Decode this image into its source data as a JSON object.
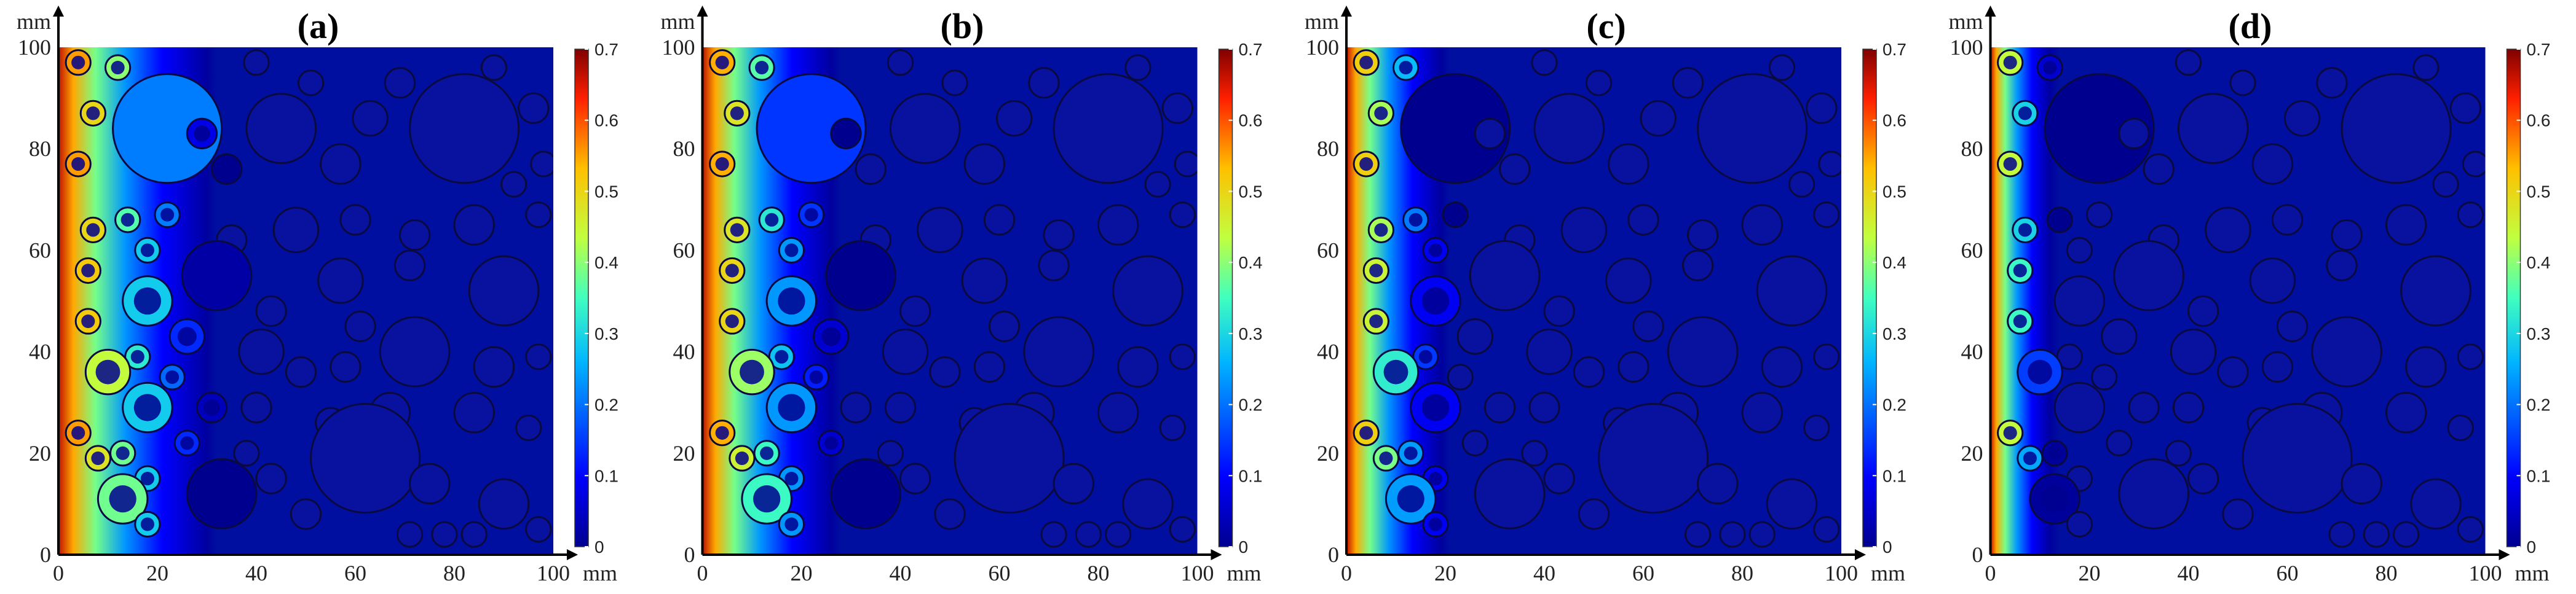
{
  "figure": {
    "unit": "mm",
    "colors": {
      "low": "#00008f",
      "mid": "#00c8ff",
      "high": "#ff0000",
      "background": "#000f9f"
    }
  },
  "chart_data": [
    {
      "type": "heatmap",
      "title": "(a)",
      "xlabel": "mm",
      "ylabel": "mm",
      "xlim": [
        0,
        100
      ],
      "ylim": [
        0,
        100
      ],
      "x_ticks": [
        "0",
        "20",
        "40",
        "60",
        "80",
        "100"
      ],
      "y_ticks": [
        "0",
        "20",
        "40",
        "60",
        "80",
        "100"
      ],
      "colorbar": {
        "range": [
          0,
          0.7
        ],
        "ticks": [
          "0",
          "0.1",
          "0.2",
          "0.3",
          "0.4",
          "0.5",
          "0.6",
          "0.7"
        ]
      },
      "penetration_depth_mm": 30,
      "grid": false
    },
    {
      "type": "heatmap",
      "title": "(b)",
      "xlabel": "mm",
      "ylabel": "mm",
      "xlim": [
        0,
        100
      ],
      "ylim": [
        0,
        100
      ],
      "x_ticks": [
        "0",
        "20",
        "40",
        "60",
        "80",
        "100"
      ],
      "y_ticks": [
        "0",
        "20",
        "40",
        "60",
        "80",
        "100"
      ],
      "colorbar": {
        "range": [
          0,
          0.7
        ],
        "ticks": [
          "0",
          "0.1",
          "0.2",
          "0.3",
          "0.4",
          "0.5",
          "0.6",
          "0.7"
        ]
      },
      "penetration_depth_mm": 26,
      "grid": false
    },
    {
      "type": "heatmap",
      "title": "(c)",
      "xlabel": "mm",
      "ylabel": "mm",
      "xlim": [
        0,
        100
      ],
      "ylim": [
        0,
        100
      ],
      "x_ticks": [
        "0",
        "20",
        "40",
        "60",
        "80",
        "100"
      ],
      "y_ticks": [
        "0",
        "20",
        "40",
        "60",
        "80",
        "100"
      ],
      "colorbar": {
        "range": [
          0,
          0.7
        ],
        "ticks": [
          "0",
          "0.1",
          "0.2",
          "0.3",
          "0.4",
          "0.5",
          "0.6",
          "0.7"
        ]
      },
      "penetration_depth_mm": 19,
      "grid": false
    },
    {
      "type": "heatmap",
      "title": "(d)",
      "xlabel": "mm",
      "ylabel": "mm",
      "xlim": [
        0,
        100
      ],
      "ylim": [
        0,
        100
      ],
      "x_ticks": [
        "0",
        "20",
        "40",
        "60",
        "80",
        "100"
      ],
      "y_ticks": [
        "0",
        "20",
        "40",
        "60",
        "80",
        "100"
      ],
      "colorbar": {
        "range": [
          0,
          0.7
        ],
        "ticks": [
          "0",
          "0.1",
          "0.2",
          "0.3",
          "0.4",
          "0.5",
          "0.6",
          "0.7"
        ]
      },
      "penetration_depth_mm": 12,
      "grid": false
    }
  ],
  "aggregates": [
    {
      "x": 4,
      "y": 97,
      "r": 2.5
    },
    {
      "x": 12,
      "y": 96,
      "r": 2.5
    },
    {
      "x": 22,
      "y": 84,
      "r": 11
    },
    {
      "x": 7,
      "y": 87,
      "r": 2.5
    },
    {
      "x": 4,
      "y": 77,
      "r": 2.5
    },
    {
      "x": 45,
      "y": 84,
      "r": 7
    },
    {
      "x": 82,
      "y": 84,
      "r": 11
    },
    {
      "x": 63,
      "y": 86,
      "r": 3.5
    },
    {
      "x": 69,
      "y": 93,
      "r": 3
    },
    {
      "x": 57,
      "y": 77,
      "r": 4
    },
    {
      "x": 34,
      "y": 76,
      "r": 3
    },
    {
      "x": 29,
      "y": 83,
      "r": 3
    },
    {
      "x": 14,
      "y": 66,
      "r": 2.5
    },
    {
      "x": 7,
      "y": 64,
      "r": 2.5
    },
    {
      "x": 22,
      "y": 67,
      "r": 2.5
    },
    {
      "x": 35,
      "y": 62,
      "r": 3
    },
    {
      "x": 48,
      "y": 64,
      "r": 4.5
    },
    {
      "x": 60,
      "y": 66,
      "r": 3
    },
    {
      "x": 72,
      "y": 63,
      "r": 3
    },
    {
      "x": 84,
      "y": 65,
      "r": 4
    },
    {
      "x": 97,
      "y": 67,
      "r": 2.5
    },
    {
      "x": 6,
      "y": 56,
      "r": 2.5
    },
    {
      "x": 18,
      "y": 60,
      "r": 2.5
    },
    {
      "x": 32,
      "y": 55,
      "r": 7
    },
    {
      "x": 57,
      "y": 54,
      "r": 4.5
    },
    {
      "x": 71,
      "y": 57,
      "r": 3
    },
    {
      "x": 90,
      "y": 52,
      "r": 7
    },
    {
      "x": 18,
      "y": 50,
      "r": 5
    },
    {
      "x": 6,
      "y": 46,
      "r": 2.5
    },
    {
      "x": 43,
      "y": 48,
      "r": 3
    },
    {
      "x": 16,
      "y": 39,
      "r": 2.5
    },
    {
      "x": 26,
      "y": 43,
      "r": 3.5
    },
    {
      "x": 41,
      "y": 40,
      "r": 4.5
    },
    {
      "x": 61,
      "y": 45,
      "r": 3
    },
    {
      "x": 72,
      "y": 40,
      "r": 7
    },
    {
      "x": 10,
      "y": 36,
      "r": 4.5
    },
    {
      "x": 23,
      "y": 35,
      "r": 2.5
    },
    {
      "x": 49,
      "y": 36,
      "r": 3
    },
    {
      "x": 58,
      "y": 37,
      "r": 3
    },
    {
      "x": 88,
      "y": 37,
      "r": 4
    },
    {
      "x": 97,
      "y": 39,
      "r": 2.5
    },
    {
      "x": 18,
      "y": 29,
      "r": 5
    },
    {
      "x": 31,
      "y": 29,
      "r": 3
    },
    {
      "x": 40,
      "y": 29,
      "r": 3
    },
    {
      "x": 55,
      "y": 26,
      "r": 3
    },
    {
      "x": 67,
      "y": 28,
      "r": 4
    },
    {
      "x": 84,
      "y": 28,
      "r": 4
    },
    {
      "x": 95,
      "y": 25,
      "r": 2.5
    },
    {
      "x": 4,
      "y": 24,
      "r": 2.5
    },
    {
      "x": 26,
      "y": 22,
      "r": 2.5
    },
    {
      "x": 38,
      "y": 20,
      "r": 2.5
    },
    {
      "x": 62,
      "y": 19,
      "r": 11
    },
    {
      "x": 8,
      "y": 19,
      "r": 2.5
    },
    {
      "x": 13,
      "y": 20,
      "r": 2.5
    },
    {
      "x": 43,
      "y": 15,
      "r": 3
    },
    {
      "x": 18,
      "y": 15,
      "r": 2.5
    },
    {
      "x": 33,
      "y": 12,
      "r": 7
    },
    {
      "x": 13,
      "y": 11,
      "r": 5
    },
    {
      "x": 50,
      "y": 8,
      "r": 3
    },
    {
      "x": 75,
      "y": 14,
      "r": 4
    },
    {
      "x": 90,
      "y": 10,
      "r": 5
    },
    {
      "x": 18,
      "y": 6,
      "r": 2.5
    },
    {
      "x": 71,
      "y": 4,
      "r": 2.5
    },
    {
      "x": 78,
      "y": 4,
      "r": 2.5
    },
    {
      "x": 84,
      "y": 4,
      "r": 2.5
    },
    {
      "x": 97,
      "y": 5,
      "r": 2.5
    },
    {
      "x": 40,
      "y": 97,
      "r": 2.5
    },
    {
      "x": 51,
      "y": 93,
      "r": 2.5
    },
    {
      "x": 88,
      "y": 96,
      "r": 2.5
    },
    {
      "x": 96,
      "y": 88,
      "r": 3
    },
    {
      "x": 98,
      "y": 77,
      "r": 2.5
    },
    {
      "x": 92,
      "y": 73,
      "r": 2.5
    }
  ]
}
